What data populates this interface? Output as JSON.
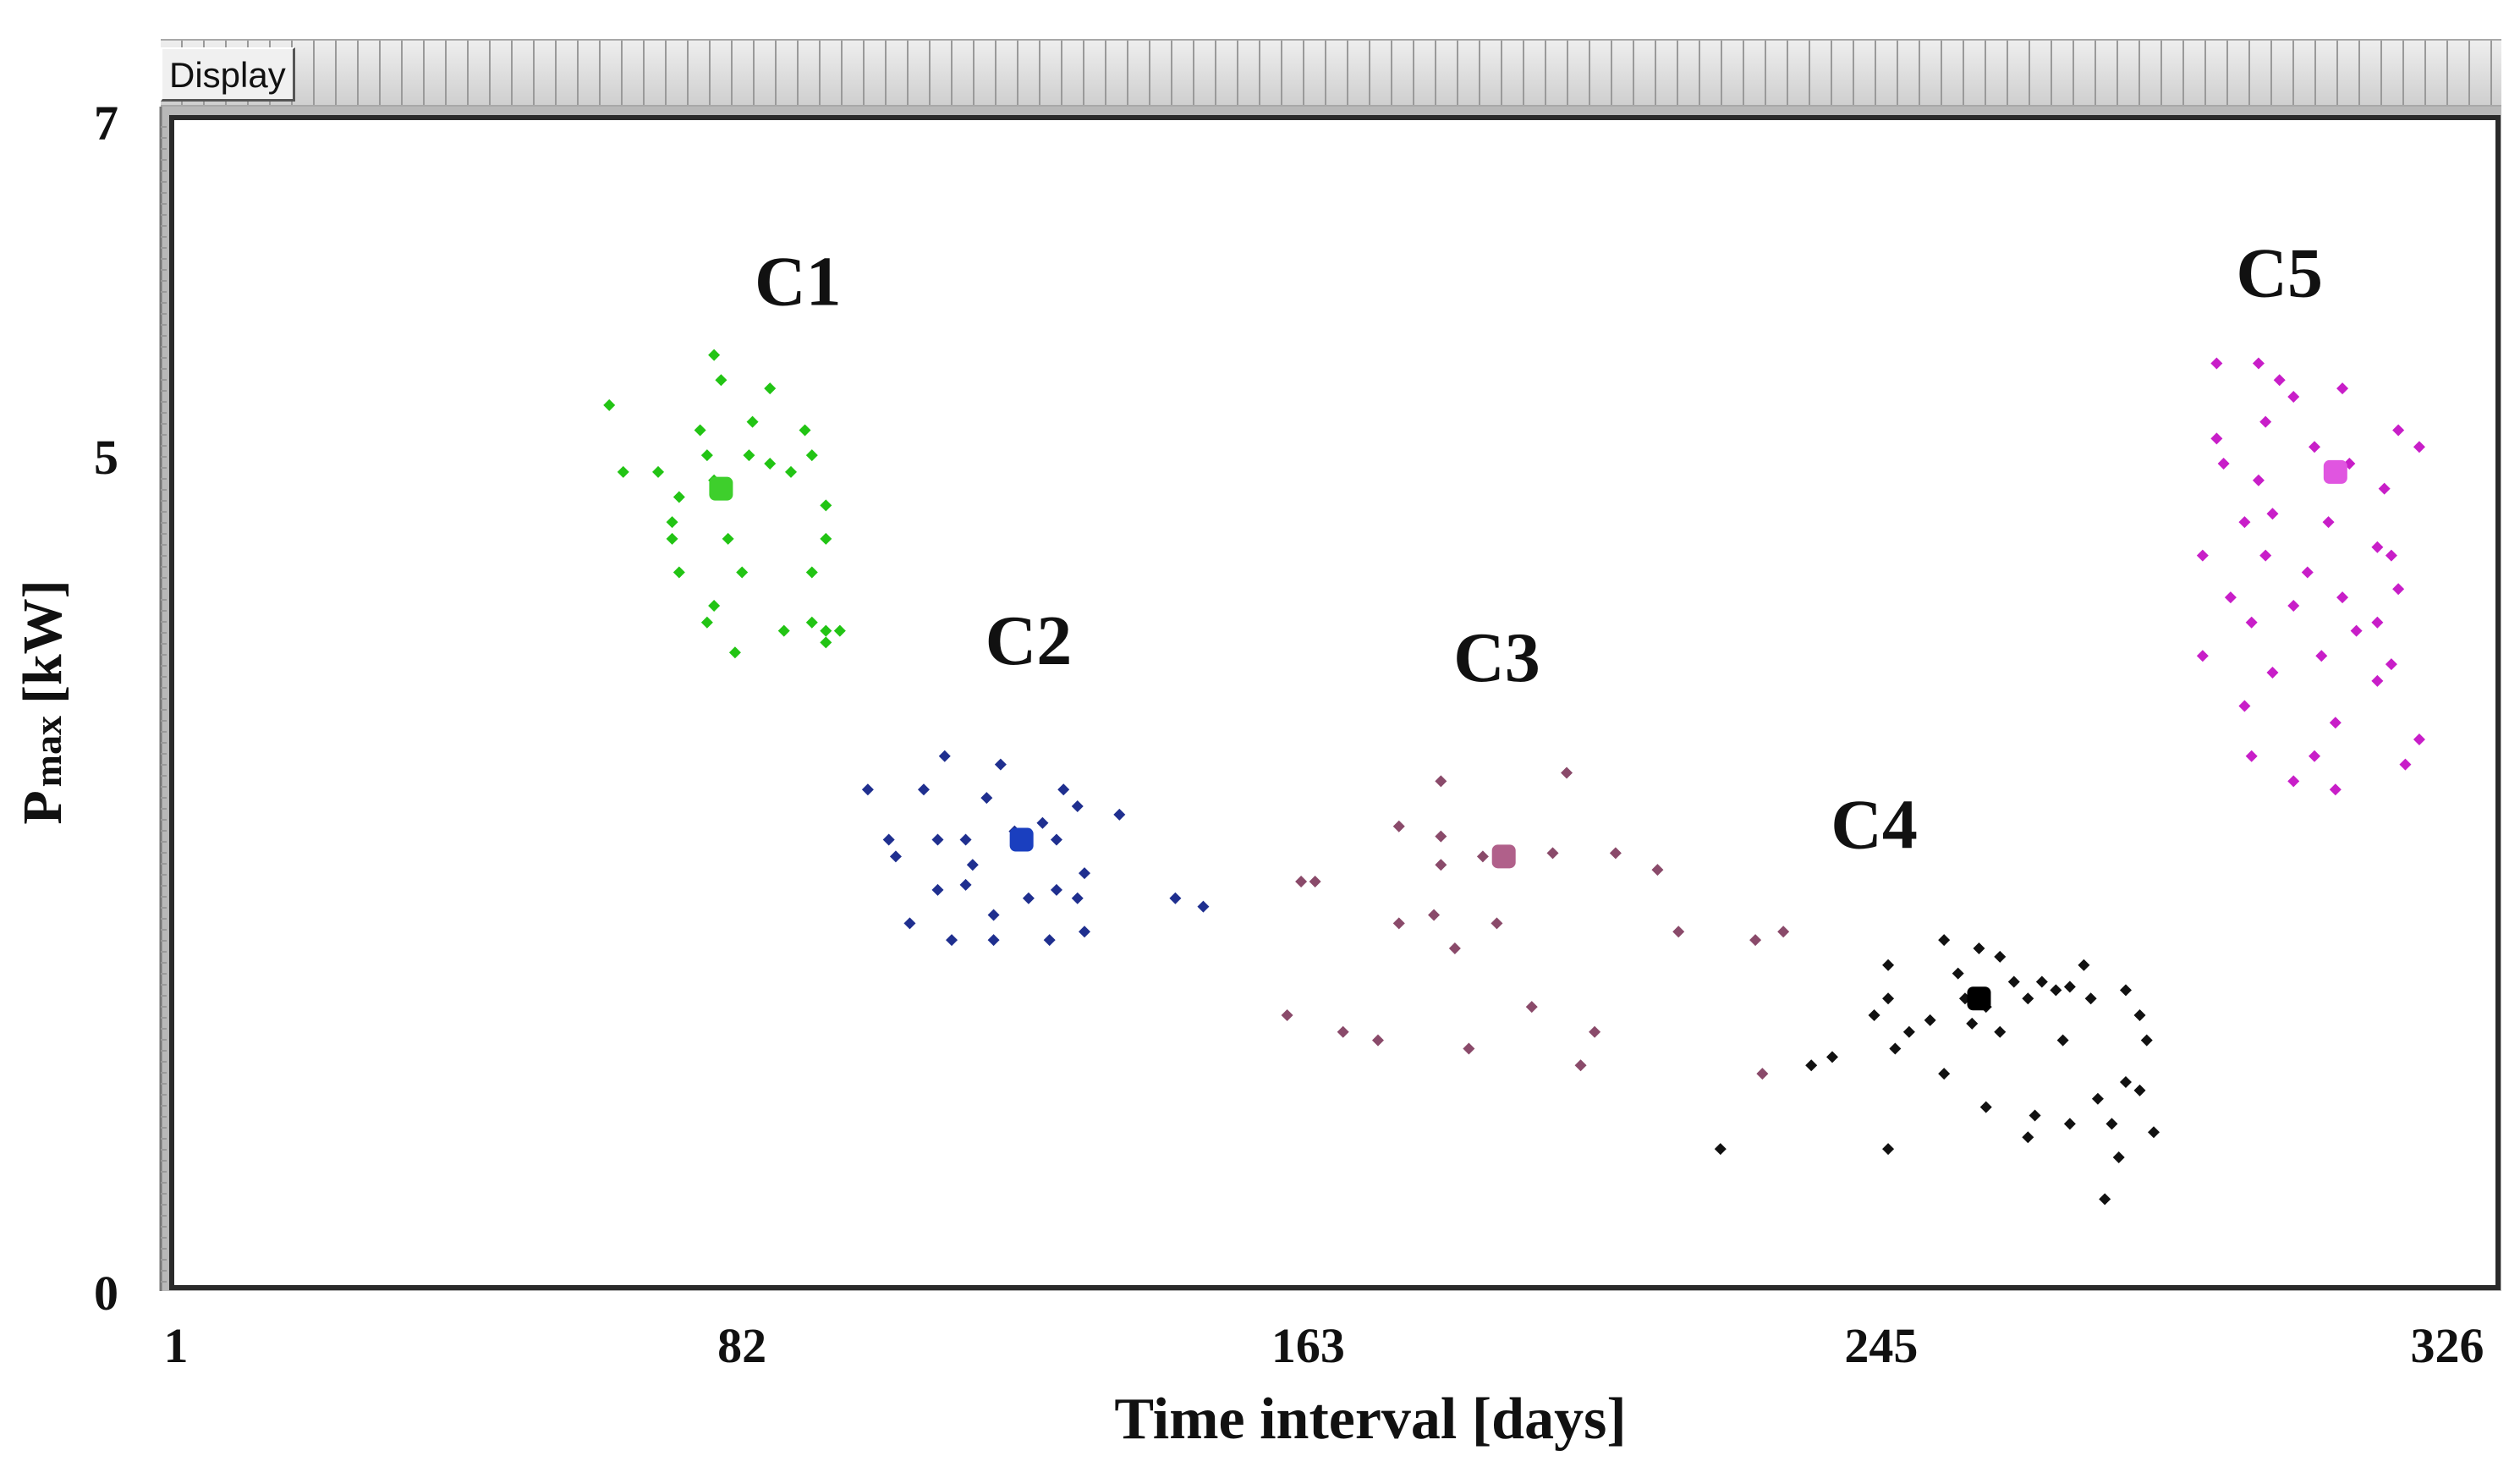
{
  "toolbar": {
    "display_label": "Display"
  },
  "chart_data": {
    "type": "scatter",
    "title": "",
    "xlabel": "Time interval [days]",
    "ylabel_main": "P",
    "ylabel_sub": "max",
    "ylabel_unit": "[kW]",
    "xlim": [
      1,
      326
    ],
    "ylim": [
      0,
      7
    ],
    "xticks": [
      1,
      82,
      163,
      245,
      326
    ],
    "yticks": [
      0,
      5,
      7
    ],
    "grid": false,
    "clusters": [
      {
        "name": "C1",
        "color": "#22c414",
        "centroid_color": "#3ecf2c",
        "label_pos": [
          90,
          5.9
        ],
        "centroid": [
          79.0,
          4.8
        ],
        "points": [
          [
            63,
            5.3
          ],
          [
            78,
            5.6
          ],
          [
            79,
            5.45
          ],
          [
            83.5,
            5.2
          ],
          [
            86,
            5.4
          ],
          [
            76,
            5.15
          ],
          [
            91,
            5.15
          ],
          [
            77,
            5.0
          ],
          [
            83,
            5.0
          ],
          [
            92,
            5.0
          ],
          [
            78,
            4.85
          ],
          [
            65,
            4.9
          ],
          [
            70,
            4.9
          ],
          [
            86,
            4.95
          ],
          [
            89,
            4.9
          ],
          [
            73,
            4.75
          ],
          [
            94,
            4.7
          ],
          [
            72,
            4.6
          ],
          [
            72,
            4.5
          ],
          [
            80,
            4.5
          ],
          [
            94,
            4.5
          ],
          [
            73,
            4.3
          ],
          [
            82,
            4.3
          ],
          [
            92,
            4.3
          ],
          [
            78,
            4.1
          ],
          [
            77,
            4.0
          ],
          [
            92,
            4.0
          ],
          [
            88,
            3.95
          ],
          [
            94,
            3.95
          ],
          [
            96,
            3.95
          ],
          [
            94,
            3.88
          ],
          [
            81,
            3.82
          ]
        ]
      },
      {
        "name": "C2",
        "color": "#1f2f8f",
        "centroid_color": "#1a3fbf",
        "label_pos": [
          123,
          3.75
        ],
        "centroid": [
          122.0,
          2.7
        ],
        "points": [
          [
            111,
            3.2
          ],
          [
            119,
            3.15
          ],
          [
            100,
            3.0
          ],
          [
            108,
            3.0
          ],
          [
            117,
            2.95
          ],
          [
            128,
            3.0
          ],
          [
            130,
            2.9
          ],
          [
            125,
            2.8
          ],
          [
            136,
            2.85
          ],
          [
            121,
            2.75
          ],
          [
            103,
            2.7
          ],
          [
            110,
            2.7
          ],
          [
            114,
            2.7
          ],
          [
            127,
            2.7
          ],
          [
            104,
            2.6
          ],
          [
            115,
            2.55
          ],
          [
            131,
            2.5
          ],
          [
            110,
            2.4
          ],
          [
            114,
            2.43
          ],
          [
            123,
            2.35
          ],
          [
            127,
            2.4
          ],
          [
            144,
            2.35
          ],
          [
            148,
            2.3
          ],
          [
            118,
            2.25
          ],
          [
            106,
            2.2
          ],
          [
            130,
            2.35
          ],
          [
            112,
            2.1
          ],
          [
            118,
            2.1
          ],
          [
            126,
            2.1
          ],
          [
            131,
            2.15
          ]
        ]
      },
      {
        "name": "C3",
        "color": "#8a4a6a",
        "centroid_color": "#b0608a",
        "label_pos": [
          190,
          3.65
        ],
        "centroid": [
          191.0,
          2.6
        ],
        "points": [
          [
            182,
            3.05
          ],
          [
            200,
            3.1
          ],
          [
            176,
            2.78
          ],
          [
            182,
            2.72
          ],
          [
            188,
            2.6
          ],
          [
            198,
            2.62
          ],
          [
            207,
            2.62
          ],
          [
            182,
            2.55
          ],
          [
            213,
            2.52
          ],
          [
            162,
            2.45
          ],
          [
            164,
            2.45
          ],
          [
            181,
            2.25
          ],
          [
            176,
            2.2
          ],
          [
            190,
            2.2
          ],
          [
            216,
            2.15
          ],
          [
            184,
            2.05
          ],
          [
            227,
            2.1
          ],
          [
            231,
            2.15
          ],
          [
            160,
            1.65
          ],
          [
            195,
            1.7
          ],
          [
            204,
            1.55
          ],
          [
            168,
            1.55
          ],
          [
            173,
            1.5
          ],
          [
            186,
            1.45
          ],
          [
            202,
            1.35
          ],
          [
            228,
            1.3
          ]
        ]
      },
      {
        "name": "C4",
        "color": "#111111",
        "centroid_color": "#000000",
        "label_pos": [
          244,
          2.65
        ],
        "centroid": [
          259.0,
          1.75
        ],
        "points": [
          [
            254,
            2.1
          ],
          [
            259,
            2.05
          ],
          [
            262,
            2.0
          ],
          [
            246,
            1.95
          ],
          [
            256,
            1.9
          ],
          [
            274,
            1.95
          ],
          [
            264,
            1.85
          ],
          [
            268,
            1.85
          ],
          [
            270,
            1.8
          ],
          [
            272,
            1.82
          ],
          [
            280,
            1.8
          ],
          [
            246,
            1.75
          ],
          [
            257,
            1.75
          ],
          [
            260,
            1.7
          ],
          [
            266,
            1.75
          ],
          [
            275,
            1.75
          ],
          [
            282,
            1.65
          ],
          [
            244,
            1.65
          ],
          [
            252,
            1.62
          ],
          [
            262,
            1.55
          ],
          [
            258,
            1.6
          ],
          [
            249,
            1.55
          ],
          [
            271,
            1.5
          ],
          [
            283,
            1.5
          ],
          [
            247,
            1.45
          ],
          [
            238,
            1.4
          ],
          [
            235,
            1.35
          ],
          [
            254,
            1.3
          ],
          [
            280,
            1.25
          ],
          [
            282,
            1.2
          ],
          [
            276,
            1.15
          ],
          [
            260,
            1.1
          ],
          [
            267,
            1.05
          ],
          [
            272,
            1.0
          ],
          [
            278,
            1.0
          ],
          [
            284,
            0.95
          ],
          [
            266,
            0.92
          ],
          [
            246,
            0.85
          ],
          [
            279,
            0.8
          ],
          [
            222,
            0.85
          ],
          [
            277,
            0.55
          ]
        ]
      },
      {
        "name": "C5",
        "color": "#c81ec8",
        "centroid_color": "#e055e0",
        "label_pos": [
          302,
          5.95
        ],
        "centroid": [
          310.0,
          4.9
        ],
        "points": [
          [
            293,
            5.55
          ],
          [
            299,
            5.55
          ],
          [
            302,
            5.45
          ],
          [
            311,
            5.4
          ],
          [
            304,
            5.35
          ],
          [
            319,
            5.15
          ],
          [
            300,
            5.2
          ],
          [
            293,
            5.1
          ],
          [
            307,
            5.05
          ],
          [
            322,
            5.05
          ],
          [
            294,
            4.95
          ],
          [
            299,
            4.85
          ],
          [
            312,
            4.95
          ],
          [
            317,
            4.8
          ],
          [
            297,
            4.6
          ],
          [
            301,
            4.65
          ],
          [
            309,
            4.6
          ],
          [
            316,
            4.45
          ],
          [
            291,
            4.4
          ],
          [
            300,
            4.4
          ],
          [
            318,
            4.4
          ],
          [
            306,
            4.3
          ],
          [
            319,
            4.2
          ],
          [
            295,
            4.15
          ],
          [
            311,
            4.15
          ],
          [
            304,
            4.1
          ],
          [
            316,
            4.0
          ],
          [
            298,
            4.0
          ],
          [
            313,
            3.95
          ],
          [
            308,
            3.8
          ],
          [
            318,
            3.75
          ],
          [
            291,
            3.8
          ],
          [
            301,
            3.7
          ],
          [
            316,
            3.65
          ],
          [
            297,
            3.5
          ],
          [
            310,
            3.4
          ],
          [
            322,
            3.3
          ],
          [
            298,
            3.2
          ],
          [
            307,
            3.2
          ],
          [
            304,
            3.05
          ],
          [
            310,
            3.0
          ],
          [
            320,
            3.15
          ]
        ]
      }
    ]
  }
}
